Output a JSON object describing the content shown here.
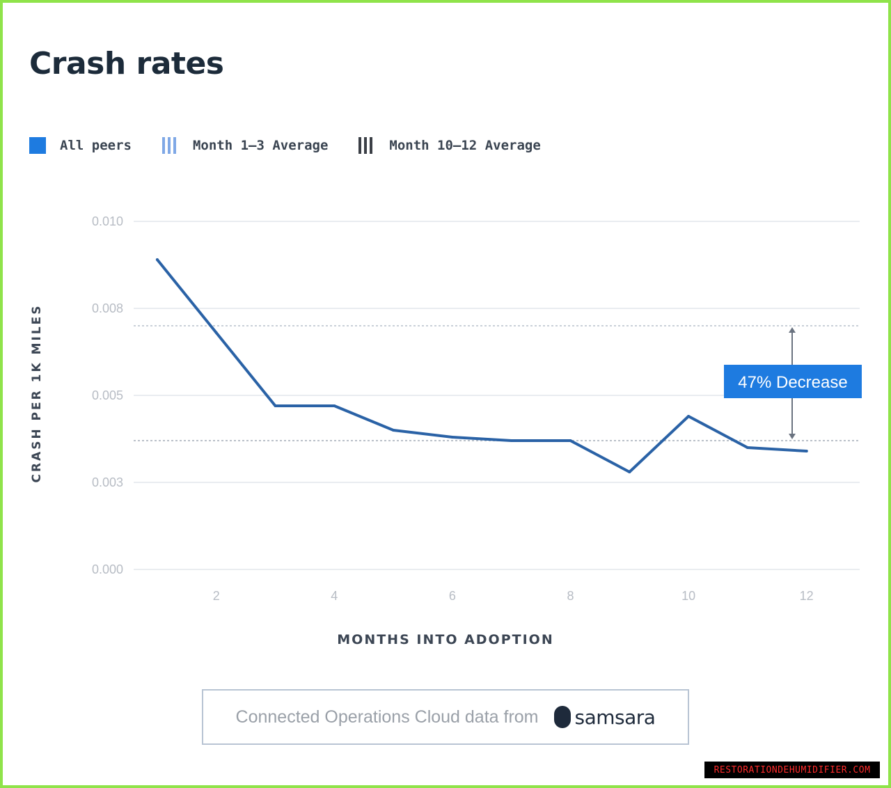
{
  "title": "Crash rates",
  "legend": [
    {
      "label": "All peers",
      "style": "solid",
      "color": "#1e7be0"
    },
    {
      "label": "Month 1–3 Average",
      "style": "stripe-light",
      "color": "#7fa8e6"
    },
    {
      "label": "Month 10–12 Average",
      "style": "stripe-dark",
      "color": "#3b3f46"
    }
  ],
  "chart_data": {
    "type": "line",
    "xlabel": "MONTHS INTO ADOPTION",
    "ylabel": "CRASH PER 1K MILES",
    "xlim": [
      0.6,
      12.9
    ],
    "ylim": [
      0.0,
      0.01
    ],
    "x_ticks": [
      2,
      4,
      6,
      8,
      10,
      12
    ],
    "x_tick_labels": [
      "2",
      "4",
      "6",
      "8",
      "10",
      "12"
    ],
    "y_ticks": [
      0.0,
      0.0025,
      0.005,
      0.0075,
      0.01
    ],
    "y_tick_labels": [
      "0.000",
      "0.003",
      "0.005",
      "0.008",
      "0.010"
    ],
    "grid": true,
    "series": [
      {
        "name": "All peers",
        "color": "#2a62a6",
        "x": [
          1,
          2,
          3,
          4,
          5,
          6,
          7,
          8,
          9,
          10,
          11,
          12
        ],
        "y": [
          0.0089,
          0.0068,
          0.0047,
          0.0047,
          0.004,
          0.0038,
          0.0037,
          0.0037,
          0.0028,
          0.0044,
          0.0035,
          0.0034
        ]
      }
    ],
    "reference_lines": [
      {
        "name": "Month 1–3 Average",
        "y": 0.007
      },
      {
        "name": "Month 10–12 Average",
        "y": 0.0037
      }
    ],
    "annotation": {
      "text": "47% Decrease",
      "color": "#1e7be0"
    }
  },
  "footer": {
    "text": "Connected Operations Cloud data from",
    "brand": "samsara"
  },
  "watermark": "RESTORATIONDEHUMIDIFIER.COM"
}
